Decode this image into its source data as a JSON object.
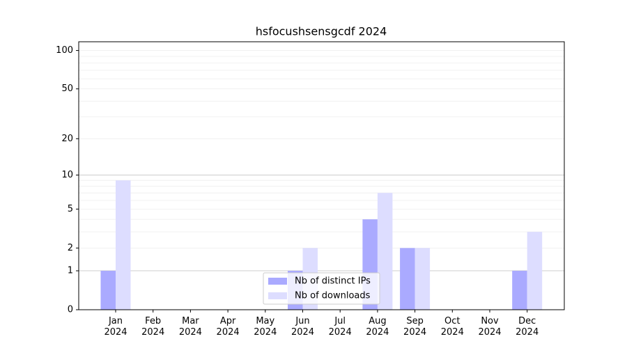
{
  "chart_data": {
    "type": "bar",
    "title": "hsfocushsensgcdf 2024",
    "categories": [
      "Jan 2024",
      "Feb 2024",
      "Mar 2024",
      "Apr 2024",
      "May 2024",
      "Jun 2024",
      "Jul 2024",
      "Aug 2024",
      "Sep 2024",
      "Oct 2024",
      "Nov 2024",
      "Dec 2024"
    ],
    "series": [
      {
        "name": "Nb of distinct IPs",
        "color": "#aaaaff",
        "values": [
          1,
          0,
          0,
          0,
          0,
          1,
          0,
          4,
          2,
          0,
          0,
          1
        ]
      },
      {
        "name": "Nb of downloads",
        "color": "#ddddff",
        "values": [
          9,
          0,
          0,
          0,
          0,
          2,
          0,
          7,
          2,
          0,
          0,
          3
        ]
      }
    ],
    "yscale": "log1p",
    "ylim": [
      0,
      117
    ],
    "yticks": [
      0,
      1,
      2,
      5,
      10,
      20,
      50,
      100
    ],
    "ymajor_grid": [
      1,
      10
    ],
    "yminor_grid": [
      2,
      3,
      4,
      5,
      6,
      7,
      8,
      9,
      20,
      30,
      40,
      50,
      60,
      70,
      80,
      90,
      100
    ],
    "grid": true,
    "legend": "lower center"
  }
}
